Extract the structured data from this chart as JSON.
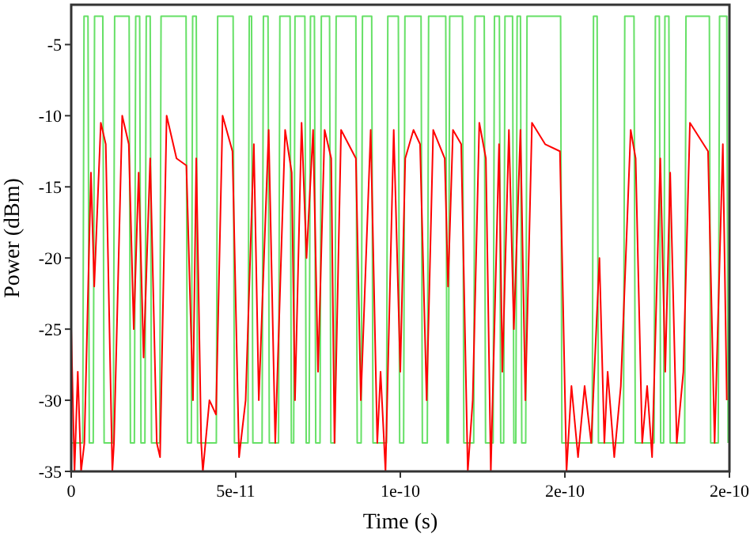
{
  "chart_data": {
    "type": "line",
    "xlabel": "Time (s)",
    "ylabel": "Power (dBm)",
    "xlim": [
      0,
      2e-10
    ],
    "ylim": [
      -35,
      -2.2
    ],
    "xticks": [
      0,
      {
        "value": 5e-11,
        "label": "5e-11"
      },
      {
        "value": 1e-10,
        "label": "1e-10"
      },
      {
        "value": 1.5e-10,
        "label": "2e-10"
      },
      {
        "value": 2e-10,
        "label": "2e-10"
      }
    ],
    "yticks": [
      -35,
      -30,
      -25,
      -20,
      -15,
      -10,
      -5
    ],
    "series": [
      {
        "color": "#66e066",
        "x": [
          0,
          3.5e-12,
          3.9e-12,
          5.1e-12,
          5.5e-12,
          6.7e-12,
          7.1e-12,
          9.6e-12,
          1e-11,
          1.28e-11,
          1.32e-11,
          1.76e-11,
          1.8e-11,
          1.92e-11,
          1.96e-11,
          2.08e-11,
          2.12e-11,
          2.24e-11,
          2.28e-11,
          2.4e-11,
          2.44e-11,
          2.69e-11,
          2.73e-11,
          3.49e-11,
          3.53e-11,
          3.65e-11,
          3.69e-11,
          3.8e-11,
          3.84e-11,
          4.41e-11,
          4.45e-11,
          4.92e-11,
          4.96e-11,
          5.37e-11,
          5.41e-11,
          5.48e-11,
          5.52e-11,
          5.8e-11,
          5.84e-11,
          5.98e-11,
          6.02e-11,
          6.3e-11,
          6.34e-11,
          6.65e-11,
          6.69e-11,
          6.76e-11,
          6.8e-11,
          7.1e-11,
          7.14e-11,
          7.23e-11,
          7.27e-11,
          7.39e-11,
          7.43e-11,
          7.56e-11,
          7.6e-11,
          7.85e-11,
          7.89e-11,
          8.01e-11,
          8.05e-11,
          8.65e-11,
          8.69e-11,
          8.81e-11,
          8.85e-11,
          9.13e-11,
          9.17e-11,
          9.58e-11,
          9.62e-11,
          9.94e-11,
          9.98e-11,
          1.01e-10,
          1.014e-10,
          1.063e-10,
          1.067e-10,
          1.082e-10,
          1.086e-10,
          1.138e-10,
          1.142e-10,
          1.146e-10,
          1.15e-10,
          1.189e-10,
          1.193e-10,
          1.223e-10,
          1.227e-10,
          1.255e-10,
          1.259e-10,
          1.282e-10,
          1.286e-10,
          1.301e-10,
          1.305e-10,
          1.314e-10,
          1.318e-10,
          1.341e-10,
          1.345e-10,
          1.351e-10,
          1.355e-10,
          1.365e-10,
          1.369e-10,
          1.381e-10,
          1.385e-10,
          1.487e-10,
          1.491e-10,
          1.583e-10,
          1.587e-10,
          1.598e-10,
          1.602e-10,
          1.678e-10,
          1.682e-10,
          1.71e-10,
          1.714e-10,
          1.771e-10,
          1.775e-10,
          1.787e-10,
          1.791e-10,
          1.8e-10,
          1.804e-10,
          1.816e-10,
          1.82e-10,
          1.864e-10,
          1.868e-10,
          1.939e-10,
          1.943e-10,
          1.966e-10,
          1.97e-10,
          1.992e-10,
          1.996e-10
        ],
        "values": [
          -33,
          -33,
          -3,
          -3,
          -33,
          -33,
          -3,
          -3,
          -33,
          -33,
          -3,
          -3,
          -33,
          -33,
          -3,
          -3,
          -33,
          -33,
          -3,
          -3,
          -33,
          -33,
          -3,
          -3,
          -33,
          -33,
          -3,
          -3,
          -33,
          -33,
          -3,
          -3,
          -33,
          -33,
          -3,
          -3,
          -33,
          -33,
          -3,
          -3,
          -33,
          -33,
          -3,
          -3,
          -33,
          -33,
          -3,
          -3,
          -33,
          -33,
          -3,
          -3,
          -33,
          -33,
          -3,
          -3,
          -33,
          -33,
          -3,
          -3,
          -33,
          -33,
          -3,
          -3,
          -33,
          -33,
          -3,
          -3,
          -33,
          -33,
          -3,
          -3,
          -33,
          -33,
          -3,
          -3,
          -33,
          -33,
          -3,
          -3,
          -33,
          -33,
          -3,
          -3,
          -33,
          -33,
          -3,
          -3,
          -33,
          -33,
          -3,
          -3,
          -33,
          -33,
          -3,
          -3,
          -33,
          -33,
          -3,
          -3,
          -33,
          -33,
          -3,
          -3,
          -33,
          -33,
          -3,
          -3,
          -33,
          -33,
          -3,
          -3,
          -33,
          -33,
          -3,
          -3,
          -33,
          -33,
          -3,
          -3,
          -33,
          -33,
          -3,
          -3,
          -33
        ]
      },
      {
        "color": "#ff0000",
        "x": [
          0,
          1e-12,
          2e-12,
          3e-12,
          4e-12,
          6e-12,
          7e-12,
          9e-12,
          1.05e-11,
          1.25e-11,
          1.3e-11,
          1.55e-11,
          1.75e-11,
          1.9e-11,
          2.05e-11,
          2.2e-11,
          2.4e-11,
          2.6e-11,
          2.7e-11,
          2.9e-11,
          3.2e-11,
          3.5e-11,
          3.7e-11,
          3.8e-11,
          3.95e-11,
          4e-11,
          4.2e-11,
          4.4e-11,
          4.6e-11,
          4.9e-11,
          5.1e-11,
          5.3e-11,
          5.55e-11,
          5.7e-11,
          6e-11,
          6.2e-11,
          6.5e-11,
          6.7e-11,
          6.8e-11,
          7e-11,
          7.15e-11,
          7.35e-11,
          7.5e-11,
          7.7e-11,
          7.9e-11,
          8e-11,
          8.2e-11,
          8.65e-11,
          8.8e-11,
          9.1e-11,
          9.3e-11,
          9.4e-11,
          9.55e-11,
          9.8e-11,
          1e-10,
          1.015e-10,
          1.04e-10,
          1.06e-10,
          1.08e-10,
          1.1e-10,
          1.135e-10,
          1.145e-10,
          1.16e-10,
          1.185e-10,
          1.205e-10,
          1.22e-10,
          1.24e-10,
          1.26e-10,
          1.275e-10,
          1.3e-10,
          1.31e-10,
          1.33e-10,
          1.345e-10,
          1.365e-10,
          1.38e-10,
          1.4e-10,
          1.44e-10,
          1.485e-10,
          1.505e-10,
          1.52e-10,
          1.54e-10,
          1.56e-10,
          1.58e-10,
          1.605e-10,
          1.62e-10,
          1.63e-10,
          1.65e-10,
          1.67e-10,
          1.7e-10,
          1.715e-10,
          1.735e-10,
          1.75e-10,
          1.765e-10,
          1.79e-10,
          1.805e-10,
          1.82e-10,
          1.84e-10,
          1.86e-10,
          1.88e-10,
          1.935e-10,
          1.955e-10,
          1.98e-10,
          1.992e-10
        ],
        "values": [
          -25,
          -35,
          -28,
          -35,
          -33,
          -14,
          -22,
          -10.5,
          -12,
          -35,
          -33,
          -10,
          -12,
          -25,
          -14,
          -27,
          -13,
          -33,
          -34,
          -10,
          -13,
          -13.5,
          -30,
          -13,
          -33,
          -35,
          -30,
          -31,
          -10,
          -12.5,
          -34,
          -30,
          -12,
          -30,
          -11,
          -33,
          -11,
          -14,
          -30,
          -10.5,
          -20,
          -11,
          -28,
          -11,
          -13,
          -33,
          -11,
          -13,
          -30,
          -11,
          -33,
          -28,
          -35,
          -11,
          -28,
          -13,
          -11,
          -12,
          -30,
          -11,
          -13,
          -22,
          -11,
          -12,
          -35,
          -30,
          -10.5,
          -13,
          -35,
          -12,
          -28,
          -11,
          -25,
          -11,
          -30,
          -10.5,
          -12,
          -12.5,
          -35,
          -29,
          -34,
          -29,
          -33,
          -20,
          -33,
          -28,
          -34,
          -29,
          -11,
          -13,
          -33,
          -29,
          -34,
          -13,
          -28,
          -14,
          -33,
          -28,
          -10.5,
          -12.5,
          -33,
          -12,
          -30
        ]
      }
    ]
  }
}
